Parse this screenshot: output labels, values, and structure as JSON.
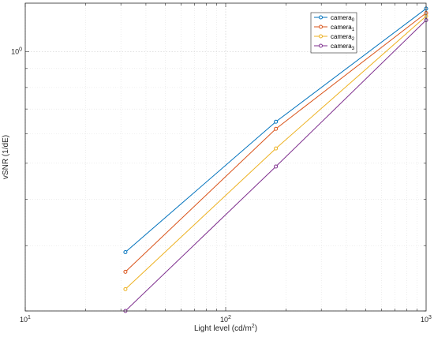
{
  "chart_data": {
    "type": "line",
    "title": "",
    "xlabel": {
      "main": "Light level (cd/m",
      "sup": "2",
      "tail": ")"
    },
    "ylabel": "vSNR (1/dE)",
    "xscale": "log",
    "yscale": "log",
    "xlim": [
      10,
      1000
    ],
    "ylim": [
      0.2,
      1.35
    ],
    "grid": true,
    "legend_position": "top-right",
    "x_ticks": [
      {
        "value": 10,
        "base": "10",
        "exp": "1"
      },
      {
        "value": 100,
        "base": "10",
        "exp": "2"
      },
      {
        "value": 1000,
        "base": "10",
        "exp": "3"
      }
    ],
    "y_ticks": [
      {
        "value": 1,
        "base": "10",
        "exp": "0"
      }
    ],
    "x": [
      31.6,
      178,
      1000
    ],
    "series": [
      {
        "name": {
          "base": "camera",
          "sub": "0"
        },
        "color": "#0072BD",
        "values": [
          0.288,
          0.647,
          1.305
        ]
      },
      {
        "name": {
          "base": "camera",
          "sub": "1"
        },
        "color": "#D95319",
        "values": [
          0.255,
          0.619,
          1.27
        ]
      },
      {
        "name": {
          "base": "camera",
          "sub": "2"
        },
        "color": "#EDB120",
        "values": [
          0.229,
          0.548,
          1.245
        ]
      },
      {
        "name": {
          "base": "camera",
          "sub": "3"
        },
        "color": "#7E2F8E",
        "values": [
          0.2,
          0.49,
          1.215
        ]
      }
    ]
  }
}
